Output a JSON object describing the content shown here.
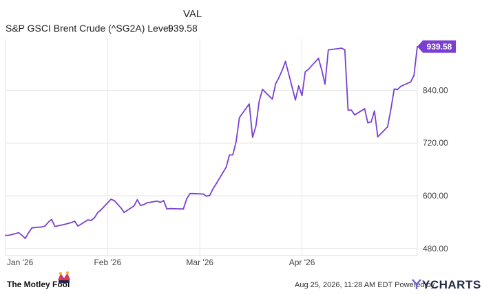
{
  "legend": {
    "column_header": "VAL",
    "series_name": "S&P GSCI Brent Crude (^SG2A) Level",
    "series_value": "939.58"
  },
  "chart_data": {
    "type": "line",
    "series": [
      {
        "name": "S&P GSCI Brent Crude (^SG2A) Level",
        "color": "#7a3fd1",
        "points": [
          [
            "2026-01-01",
            510
          ],
          [
            "2026-01-02",
            510
          ],
          [
            "2026-01-05",
            516
          ],
          [
            "2026-01-06",
            510
          ],
          [
            "2026-01-07",
            503
          ],
          [
            "2026-01-08",
            516
          ],
          [
            "2026-01-09",
            527
          ],
          [
            "2026-01-12",
            529
          ],
          [
            "2026-01-13",
            531
          ],
          [
            "2026-01-14",
            540
          ],
          [
            "2026-01-15",
            546
          ],
          [
            "2026-01-16",
            530
          ],
          [
            "2026-01-19",
            535
          ],
          [
            "2026-01-20",
            537
          ],
          [
            "2026-01-21",
            539
          ],
          [
            "2026-01-22",
            542
          ],
          [
            "2026-01-23",
            531
          ],
          [
            "2026-01-26",
            545
          ],
          [
            "2026-01-27",
            544
          ],
          [
            "2026-01-28",
            550
          ],
          [
            "2026-01-29",
            562
          ],
          [
            "2026-01-30",
            568
          ],
          [
            "2026-02-02",
            592
          ],
          [
            "2026-02-03",
            589
          ],
          [
            "2026-02-04",
            581
          ],
          [
            "2026-02-05",
            573
          ],
          [
            "2026-02-06",
            562
          ],
          [
            "2026-02-09",
            577
          ],
          [
            "2026-02-10",
            591
          ],
          [
            "2026-02-11",
            578
          ],
          [
            "2026-02-12",
            580
          ],
          [
            "2026-02-13",
            584
          ],
          [
            "2026-02-16",
            588
          ],
          [
            "2026-02-17",
            585
          ],
          [
            "2026-02-18",
            589
          ],
          [
            "2026-02-19",
            570
          ],
          [
            "2026-02-20",
            571
          ],
          [
            "2026-02-23",
            570
          ],
          [
            "2026-02-24",
            570
          ],
          [
            "2026-02-25",
            593
          ],
          [
            "2026-02-26",
            605
          ],
          [
            "2026-02-27",
            605
          ],
          [
            "2026-03-02",
            604
          ],
          [
            "2026-03-03",
            599
          ],
          [
            "2026-03-04",
            601
          ],
          [
            "2026-03-05",
            616
          ],
          [
            "2026-03-06",
            628
          ],
          [
            "2026-03-09",
            665
          ],
          [
            "2026-03-10",
            693
          ],
          [
            "2026-03-11",
            693
          ],
          [
            "2026-03-12",
            723
          ],
          [
            "2026-03-13",
            778
          ],
          [
            "2026-03-16",
            809
          ],
          [
            "2026-03-17",
            733
          ],
          [
            "2026-03-18",
            758
          ],
          [
            "2026-03-19",
            815
          ],
          [
            "2026-03-20",
            842
          ],
          [
            "2026-03-23",
            820
          ],
          [
            "2026-03-24",
            855
          ],
          [
            "2026-03-25",
            869
          ],
          [
            "2026-03-26",
            886
          ],
          [
            "2026-03-27",
            906
          ],
          [
            "2026-03-30",
            818
          ],
          [
            "2026-03-31",
            850
          ],
          [
            "2026-04-01",
            828
          ],
          [
            "2026-04-02",
            882
          ],
          [
            "2026-04-03",
            888
          ],
          [
            "2026-04-06",
            913
          ],
          [
            "2026-04-07",
            886
          ],
          [
            "2026-04-08",
            854
          ],
          [
            "2026-04-09",
            932
          ],
          [
            "2026-04-10",
            933
          ],
          [
            "2026-04-13",
            936
          ],
          [
            "2026-04-14",
            932
          ],
          [
            "2026-04-15",
            795
          ],
          [
            "2026-04-16",
            795
          ],
          [
            "2026-04-17",
            784
          ],
          [
            "2026-04-20",
            798
          ],
          [
            "2026-04-21",
            766
          ],
          [
            "2026-04-22",
            768
          ],
          [
            "2026-04-23",
            793
          ],
          [
            "2026-04-24",
            734
          ],
          [
            "2026-04-27",
            757
          ],
          [
            "2026-04-28",
            797
          ],
          [
            "2026-04-29",
            843
          ],
          [
            "2026-04-30",
            842
          ],
          [
            "2026-05-01",
            849
          ],
          [
            "2026-05-04",
            859
          ],
          [
            "2026-05-05",
            874
          ],
          [
            "2026-05-06",
            939.58
          ]
        ]
      }
    ],
    "x_ticks": [
      {
        "label": "Jan '26",
        "date": "2026-01-01"
      },
      {
        "label": "Feb '26",
        "date": "2026-02-01"
      },
      {
        "label": "Mar '26",
        "date": "2026-03-01"
      },
      {
        "label": "Apr '26",
        "date": "2026-04-01"
      }
    ],
    "y_ticks": [
      "480.00",
      "600.00",
      "720.00",
      "840.00"
    ],
    "ylim": [
      464,
      958
    ],
    "xlim": [
      "2026-01-01",
      "2026-05-06"
    ],
    "last_value_label": "939.58",
    "grid": "horizontal and vertical",
    "axis_position": "right"
  },
  "footer": {
    "brand": "The Motley Fool",
    "timestamp": "Aug 25, 2026, 11:28 AM EDT Powered by",
    "provider": "YCHARTS"
  }
}
